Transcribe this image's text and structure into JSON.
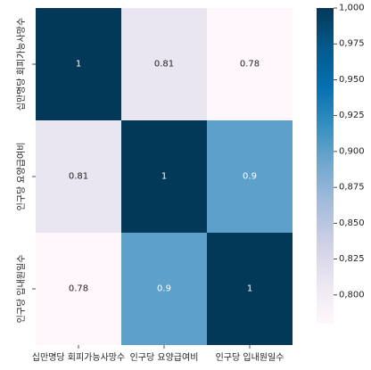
{
  "chart_data": {
    "type": "heatmap",
    "x_categories": [
      "십만명당 회피가능사망수",
      "인구당 요양급여비",
      "인구당 입내원일수"
    ],
    "y_categories": [
      "십만명당 회피가능사망수",
      "인구당 요양급여비",
      "인구당 입내원일수"
    ],
    "values": [
      [
        1.0,
        0.81,
        0.78
      ],
      [
        0.81,
        1.0,
        0.9
      ],
      [
        0.78,
        0.9,
        1.0
      ]
    ],
    "cell_labels": [
      [
        "1",
        "0.81",
        "0.78"
      ],
      [
        "0.81",
        "1",
        "0.9"
      ],
      [
        "0.78",
        "0.9",
        "1"
      ]
    ],
    "colormap": "PuBu",
    "vmin": 0.78,
    "vmax": 1.0,
    "colorbar": {
      "ticks": [
        1.0,
        0.975,
        0.95,
        0.925,
        0.9,
        0.875,
        0.85,
        0.825,
        0.8
      ],
      "tick_labels": [
        "1,000",
        "0,975",
        "0,950",
        "0,925",
        "0,900",
        "0,875",
        "0,850",
        "0,825",
        "0,800"
      ]
    },
    "grid": false
  },
  "colors": {
    "light": "#fff7fb",
    "dark": "#023858",
    "text_light": "#ffffff",
    "text_dark": "#222222"
  }
}
